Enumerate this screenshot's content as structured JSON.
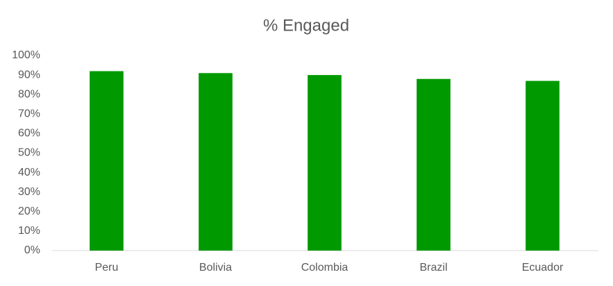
{
  "chart_data": {
    "type": "bar",
    "title": "% Engaged",
    "categories": [
      "Peru",
      "Bolivia",
      "Colombia",
      "Brazil",
      "Ecuador"
    ],
    "values": [
      92,
      91,
      90,
      88,
      87
    ],
    "color": "#009900",
    "ylim": [
      0,
      100
    ],
    "yticks": [
      {
        "value": 0,
        "label": "0%"
      },
      {
        "value": 10,
        "label": "10%"
      },
      {
        "value": 20,
        "label": "20%"
      },
      {
        "value": 30,
        "label": "30%"
      },
      {
        "value": 40,
        "label": "40%"
      },
      {
        "value": 50,
        "label": "50%"
      },
      {
        "value": 60,
        "label": "60%"
      },
      {
        "value": 70,
        "label": "70%"
      },
      {
        "value": 80,
        "label": "80%"
      },
      {
        "value": 90,
        "label": "90%"
      },
      {
        "value": 100,
        "label": "100%"
      }
    ],
    "grid": false
  }
}
